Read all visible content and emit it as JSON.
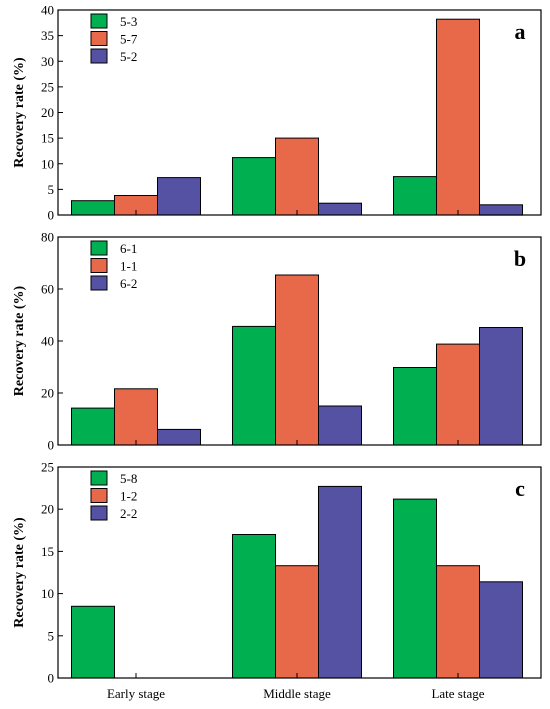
{
  "colors": {
    "green": "#00b050",
    "orange": "#e8684a",
    "blue": "#5652a3"
  },
  "chart_data": [
    {
      "type": "bar",
      "panel_label": "a",
      "categories": [
        "Early stage",
        "Middle stage",
        "Late stage"
      ],
      "ylabel": "Recovery rate (%)",
      "ylim": [
        0,
        40
      ],
      "yticks": [
        0,
        5,
        10,
        15,
        20,
        25,
        30,
        35,
        40
      ],
      "legend_position": "top-left",
      "series": [
        {
          "name": "5-3",
          "color": "#00b050",
          "values": [
            2.8,
            11.2,
            7.5
          ]
        },
        {
          "name": "5-7",
          "color": "#e8684a",
          "values": [
            3.8,
            15.0,
            38.2
          ]
        },
        {
          "name": "5-2",
          "color": "#5652a3",
          "values": [
            7.3,
            2.3,
            2.0
          ]
        }
      ]
    },
    {
      "type": "bar",
      "panel_label": "b",
      "categories": [
        "Early stage",
        "Middle stage",
        "Late stage"
      ],
      "ylabel": "Recovery rate (%)",
      "ylim": [
        0,
        80
      ],
      "yticks": [
        0,
        20,
        40,
        60,
        80
      ],
      "legend_position": "top-left",
      "series": [
        {
          "name": "6-1",
          "color": "#00b050",
          "values": [
            14.2,
            45.6,
            29.8
          ]
        },
        {
          "name": "1-1",
          "color": "#e8684a",
          "values": [
            21.6,
            65.4,
            38.8
          ]
        },
        {
          "name": "6-2",
          "color": "#5652a3",
          "values": [
            6.0,
            15.0,
            45.2
          ]
        }
      ]
    },
    {
      "type": "bar",
      "panel_label": "c",
      "categories": [
        "Early stage",
        "Middle stage",
        "Late stage"
      ],
      "ylabel": "Recovery rate (%)",
      "ylim": [
        0,
        25
      ],
      "yticks": [
        0,
        5,
        10,
        15,
        20,
        25
      ],
      "legend_position": "top-left",
      "series": [
        {
          "name": "5-8",
          "color": "#00b050",
          "values": [
            8.5,
            17.0,
            21.2
          ]
        },
        {
          "name": "1-2",
          "color": "#e8684a",
          "values": [
            0,
            13.3,
            13.3
          ]
        },
        {
          "name": "2-2",
          "color": "#5652a3",
          "values": [
            0,
            22.7,
            11.4
          ]
        }
      ]
    }
  ]
}
